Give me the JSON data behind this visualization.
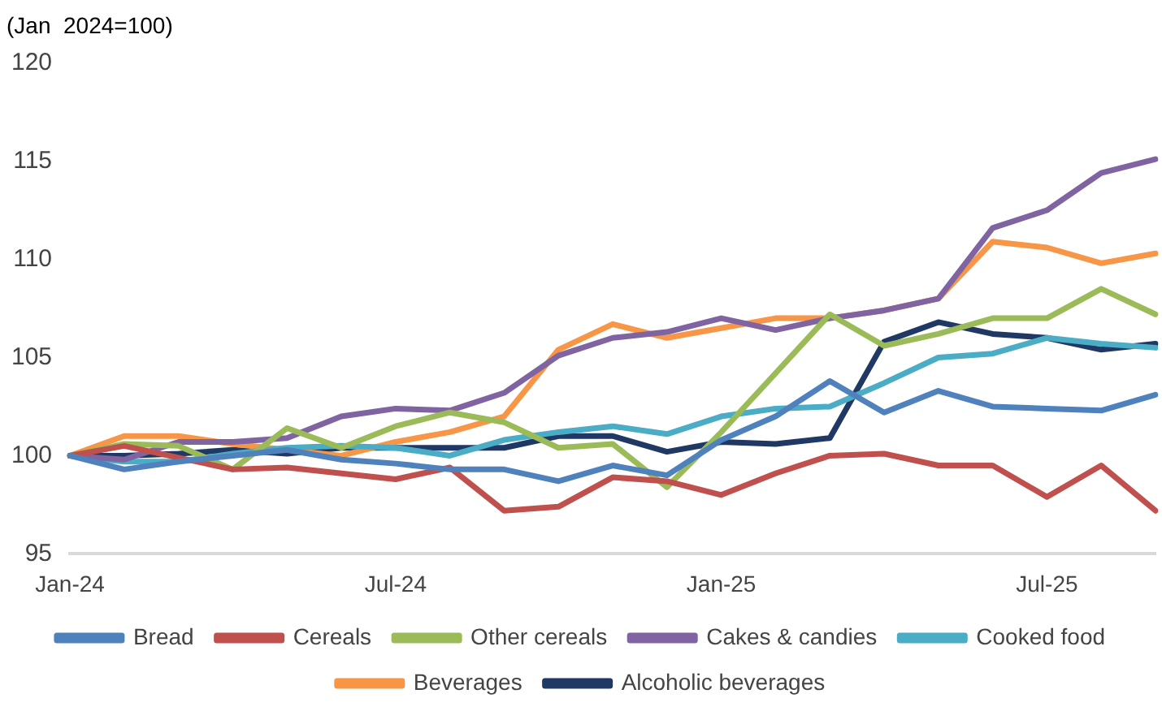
{
  "chart_data": {
    "type": "line",
    "ylabel": "(Jan  2024=100)",
    "categories": [
      "Jan-24",
      null,
      null,
      null,
      null,
      null,
      "Jul-24",
      null,
      null,
      null,
      null,
      null,
      "Jan-25",
      null,
      null,
      null,
      null,
      null,
      "Jul-25",
      null,
      null
    ],
    "series": [
      {
        "name": "Bread",
        "color": "#4f81bd",
        "values": [
          100,
          99.3,
          99.7,
          100,
          100.3,
          99.8,
          99.6,
          99.3,
          99.3,
          98.7,
          99.5,
          99.0,
          100.8,
          102.0,
          103.8,
          102.2,
          103.3,
          102.5,
          102.4,
          102.3,
          103.1
        ]
      },
      {
        "name": "Cereals",
        "color": "#c0504d",
        "values": [
          100,
          100.5,
          99.9,
          99.3,
          99.4,
          99.1,
          98.8,
          99.4,
          97.2,
          97.4,
          98.9,
          98.7,
          98.0,
          99.1,
          100.0,
          100.1,
          99.5,
          99.5,
          97.9,
          99.5,
          97.2
        ]
      },
      {
        "name": "Other cereals",
        "color": "#9bbb59",
        "values": [
          100,
          100.6,
          100.5,
          99.3,
          101.4,
          100.4,
          101.5,
          102.2,
          101.7,
          100.4,
          100.6,
          98.4,
          101.2,
          104.2,
          107.2,
          105.6,
          106.2,
          107.0,
          107.0,
          108.5,
          107.2
        ]
      },
      {
        "name": "Cakes & candies",
        "color": "#8064a2",
        "values": [
          100,
          99.8,
          100.7,
          100.7,
          100.9,
          102.0,
          102.4,
          102.3,
          103.2,
          105.1,
          106.0,
          106.3,
          107.0,
          106.4,
          107.0,
          107.4,
          108.0,
          111.6,
          112.5,
          114.4,
          115.1
        ]
      },
      {
        "name": "Cooked food",
        "color": "#4bacc6",
        "values": [
          100,
          99.7,
          99.7,
          100.1,
          100.4,
          100.5,
          100.4,
          100.0,
          100.8,
          101.2,
          101.5,
          101.1,
          102.0,
          102.4,
          102.5,
          103.7,
          105.0,
          105.2,
          106.0,
          105.7,
          105.5
        ]
      },
      {
        "name": "Beverages",
        "color": "#f79646",
        "values": [
          100,
          101.0,
          101.0,
          100.6,
          100.3,
          100.0,
          100.7,
          101.2,
          102.0,
          105.4,
          106.7,
          106.0,
          106.5,
          107.0,
          107.0,
          107.4,
          108.0,
          110.9,
          110.6,
          109.8,
          110.3
        ]
      },
      {
        "name": "Alcoholic beverages",
        "color": "#1f3864",
        "values": [
          100,
          100.0,
          100.1,
          100.3,
          100.1,
          100.4,
          100.4,
          100.4,
          100.4,
          101.0,
          101.0,
          100.2,
          100.7,
          100.6,
          100.9,
          105.8,
          106.8,
          106.2,
          106.0,
          105.4,
          105.7
        ]
      }
    ],
    "ylim": [
      95,
      120
    ],
    "yticks": [
      95,
      100,
      105,
      110,
      115,
      120
    ],
    "grid": false,
    "legend": "bottom",
    "marker": "none",
    "line_style": "solid"
  }
}
